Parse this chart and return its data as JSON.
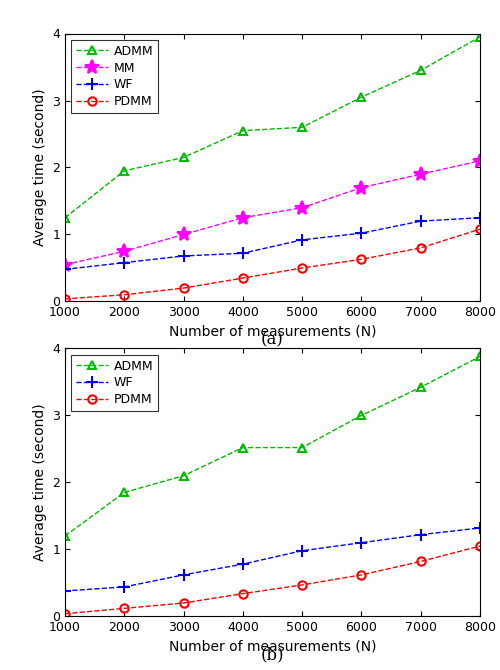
{
  "x": [
    1000,
    2000,
    3000,
    4000,
    5000,
    6000,
    7000,
    8000
  ],
  "subplot_a": {
    "ADMM": [
      1.25,
      1.95,
      2.15,
      2.55,
      2.6,
      3.05,
      3.45,
      3.95
    ],
    "MM": [
      0.55,
      0.75,
      1.0,
      1.25,
      1.4,
      1.7,
      1.9,
      2.1
    ],
    "WF": [
      0.48,
      0.58,
      0.68,
      0.72,
      0.92,
      1.02,
      1.2,
      1.25
    ],
    "PDMM": [
      0.04,
      0.1,
      0.2,
      0.35,
      0.5,
      0.63,
      0.8,
      1.08
    ]
  },
  "subplot_b": {
    "ADMM": [
      1.2,
      1.85,
      2.1,
      2.52,
      2.52,
      3.0,
      3.42,
      3.88
    ],
    "WF": [
      0.38,
      0.44,
      0.62,
      0.78,
      0.98,
      1.1,
      1.22,
      1.32
    ],
    "PDMM": [
      0.04,
      0.12,
      0.2,
      0.34,
      0.47,
      0.62,
      0.82,
      1.05
    ]
  },
  "colors": {
    "ADMM": "#00bb00",
    "MM": "#ff00ff",
    "WF": "#0000ff",
    "PDMM": "#ff0000"
  },
  "markers": {
    "ADMM": "^",
    "MM": "*",
    "WF": "+",
    "PDMM": "o"
  },
  "xlabel": "Number of measurements (N)",
  "ylabel": "Average time (second)",
  "ylim": [
    0,
    4
  ],
  "xlim": [
    1000,
    8000
  ],
  "xticks": [
    1000,
    2000,
    3000,
    4000,
    5000,
    6000,
    7000,
    8000
  ],
  "yticks": [
    0,
    1,
    2,
    3,
    4
  ],
  "label_a": "(a)",
  "label_b": "(b)",
  "markersize": 6,
  "linewidth": 1.0
}
